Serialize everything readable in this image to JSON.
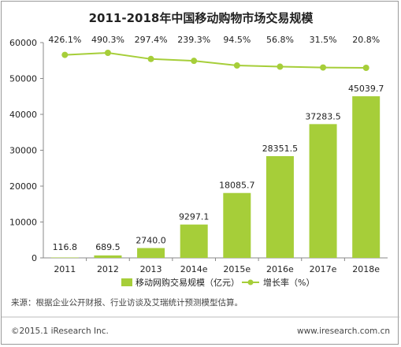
{
  "chart_data": {
    "type": "bar",
    "title": "2011-2018年中国移动购物市场交易规模",
    "categories": [
      "2011",
      "2012",
      "2013",
      "2014e",
      "2015e",
      "2016e",
      "2017e",
      "2018e"
    ],
    "series": [
      {
        "name": "移动网购交易规模（亿元）",
        "type": "bar",
        "values": [
          116.8,
          689.5,
          2740.0,
          9297.1,
          18085.7,
          28351.5,
          37283.5,
          45039.7
        ],
        "labels": [
          "116.8",
          "689.5",
          "2740.0",
          "9297.1",
          "18085.7",
          "28351.5",
          "37283.5",
          "45039.7"
        ],
        "color": "#a6ce39"
      },
      {
        "name": "增长率（%）",
        "type": "line",
        "values": [
          426.1,
          490.3,
          297.4,
          239.3,
          94.5,
          56.8,
          31.5,
          20.8
        ],
        "labels": [
          "426.1%",
          "490.3%",
          "297.4%",
          "239.3%",
          "94.5%",
          "56.8%",
          "31.5%",
          "20.8%"
        ],
        "color": "#a6ce39"
      }
    ],
    "ylim": [
      0,
      60000
    ],
    "yticks": [
      0,
      10000,
      20000,
      30000,
      40000,
      50000,
      60000
    ],
    "ytick_labels": [
      "0",
      "10000",
      "20000",
      "30000",
      "40000",
      "50000",
      "60000"
    ],
    "xlabel": "",
    "ylabel": "",
    "grid": false,
    "legend": "bottom-center"
  },
  "note": "来源：根据企业公开财报、行业访谈及艾瑞统计预测模型估算。",
  "footer": {
    "copyright": "©2015.1 iResearch Inc.",
    "website": "www.iresearch.com.cn"
  }
}
